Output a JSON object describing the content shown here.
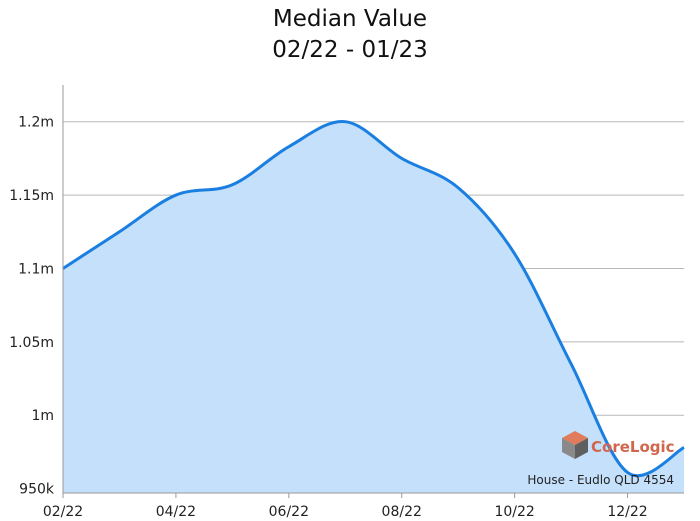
{
  "chart_data": {
    "type": "area",
    "title": "Median Value",
    "subtitle": "02/22 - 01/23",
    "xlabel": "",
    "ylabel": "",
    "x": [
      "02/22",
      "03/22",
      "04/22",
      "05/22",
      "06/22",
      "07/22",
      "08/22",
      "09/22",
      "10/22",
      "11/22",
      "12/22",
      "01/23"
    ],
    "x_tick_labels": [
      "02/22",
      "04/22",
      "06/22",
      "08/22",
      "10/22",
      "12/22"
    ],
    "series": [
      {
        "values": [
          1100000,
          1125000,
          1150000,
          1157000,
          1183000,
          1200000,
          1175000,
          1155000,
          1110000,
          1035000,
          961000,
          978000
        ]
      }
    ],
    "y_ticks": [
      950000,
      1000000,
      1050000,
      1100000,
      1150000,
      1200000
    ],
    "y_tick_labels": [
      "950k",
      "1m",
      "1.05m",
      "1.1m",
      "1.15m",
      "1.2m"
    ],
    "ylim": [
      947000,
      1225000
    ],
    "grid": true,
    "line_color": "#1a7fe0",
    "fill_color": "#c5e0fb",
    "grid_color": "#b8b8b8",
    "footer": "House - Eudlo QLD 4554",
    "watermark": "CoreLogic"
  }
}
